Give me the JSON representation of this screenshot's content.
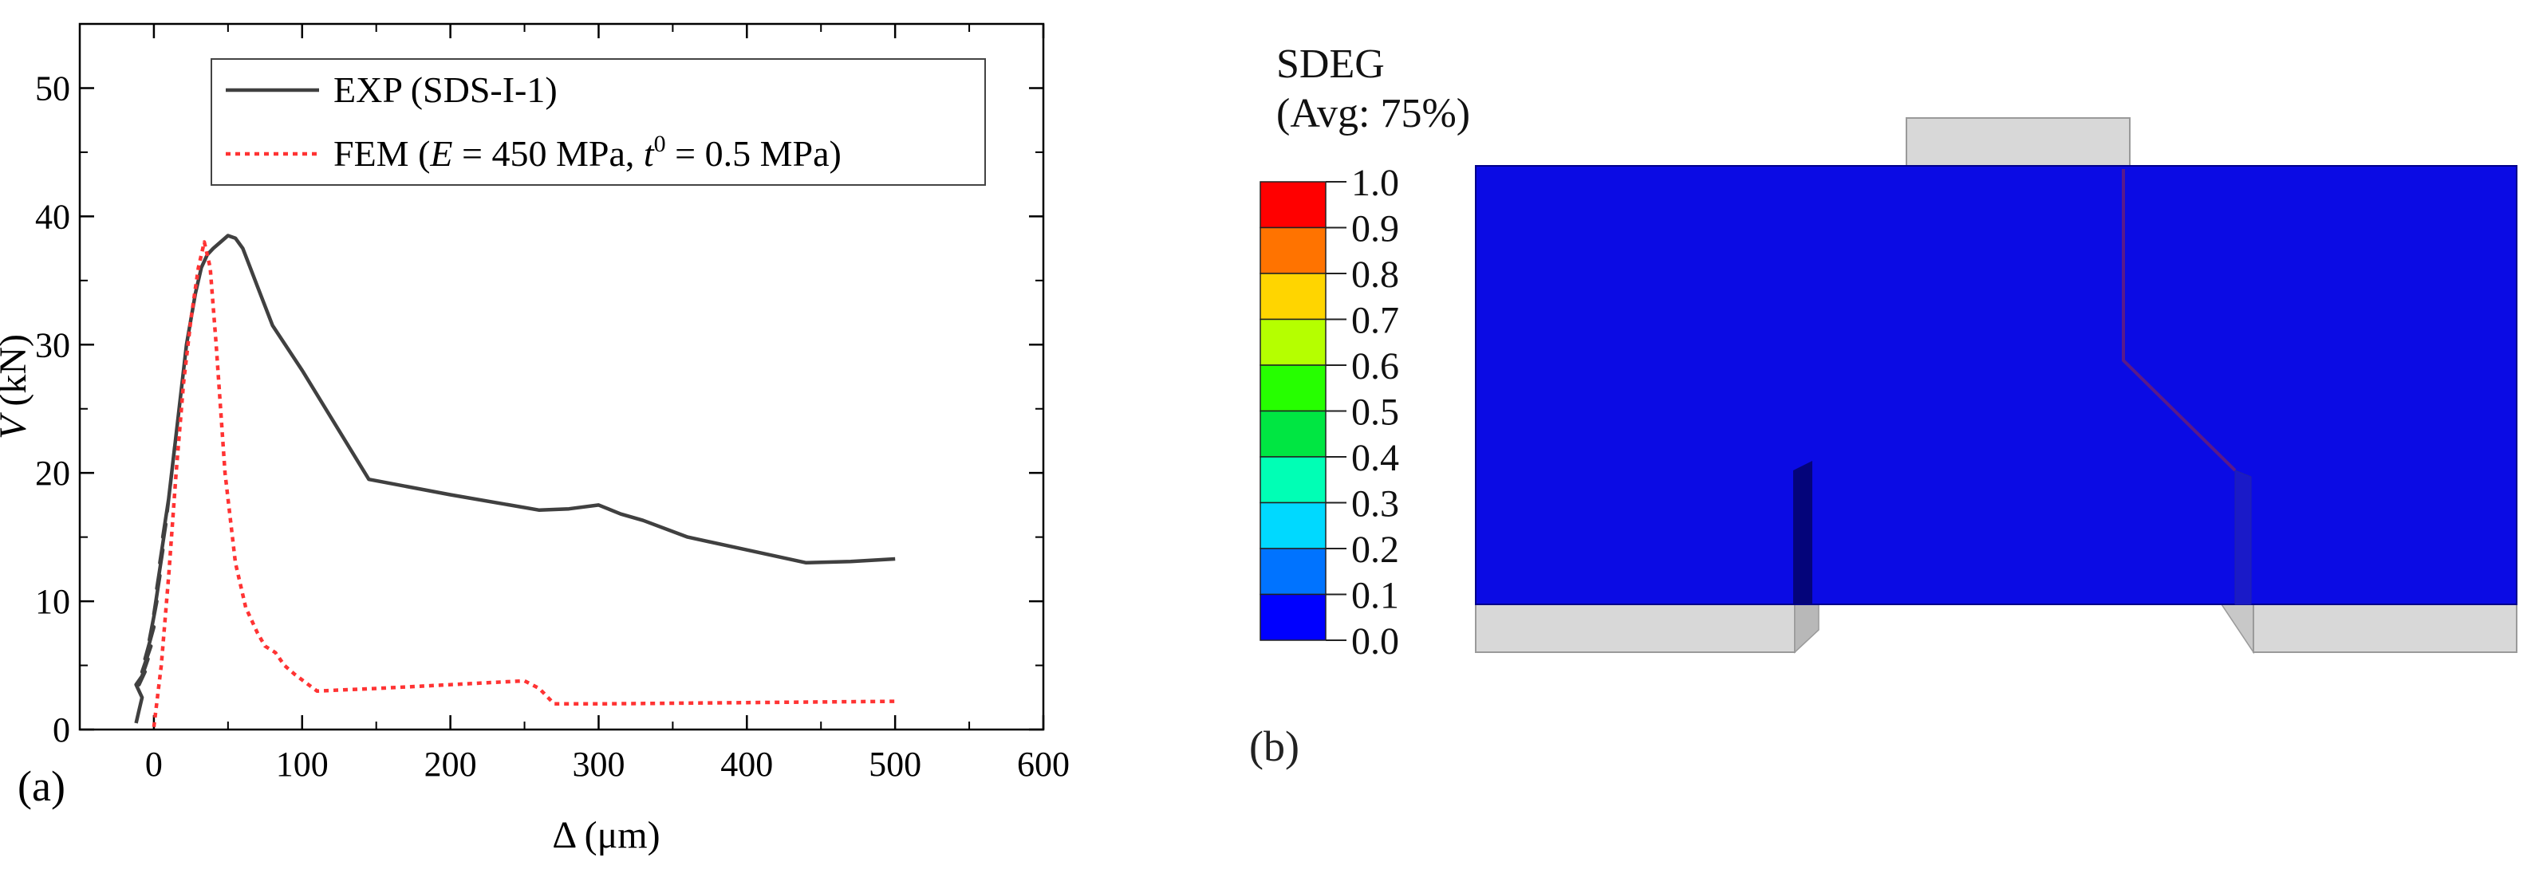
{
  "chart_data": {
    "type": "line",
    "xlabel": "Δ (μm)",
    "ylabel_symbol": "V",
    "ylabel_unit": "(kN)",
    "xlim": [
      -50,
      600
    ],
    "ylim": [
      0,
      55
    ],
    "xticks": [
      0,
      100,
      200,
      300,
      400,
      500,
      600
    ],
    "yticks": [
      0,
      10,
      20,
      30,
      40,
      50
    ],
    "grid": false,
    "legend_position": "top-right",
    "series": [
      {
        "name": "EXP (SDS-I-1)",
        "legend_text": "EXP (SDS-I-1)",
        "color": "#404040",
        "style": "solid",
        "x": [
          -12,
          -10,
          -8,
          -12,
          -6,
          -10,
          -4,
          -8,
          -2,
          -6,
          0,
          -3,
          2,
          0,
          4,
          2,
          6,
          4,
          8,
          6,
          10,
          9,
          12,
          11,
          14,
          13,
          16,
          18,
          20,
          22,
          25,
          28,
          32,
          36,
          40,
          45,
          50,
          55,
          60,
          65,
          70,
          80,
          100,
          145,
          200,
          260,
          280,
          300,
          315,
          330,
          360,
          400,
          440,
          470,
          500
        ],
        "y": [
          0.5,
          1.5,
          2.5,
          3.5,
          4.5,
          3.5,
          5.5,
          4.5,
          6.5,
          5.5,
          8,
          7,
          10,
          9,
          12,
          11,
          14,
          13,
          16,
          15,
          18,
          17,
          20,
          19,
          22,
          21,
          24,
          26,
          28,
          30,
          32,
          34,
          36,
          37,
          37.5,
          38,
          38.5,
          38.3,
          37.5,
          36,
          34.5,
          31.5,
          28,
          19.5,
          18.3,
          17.1,
          17.2,
          17.5,
          16.8,
          16.3,
          15,
          14,
          13,
          13.1,
          13.3
        ]
      },
      {
        "name": "FEM",
        "legend_text": "FEM (E = 450 MPa, t0 = 0.5 MPa)",
        "legend_prefix": "FEM (",
        "legend_e": "E",
        "legend_mid": " = 450 MPa, ",
        "legend_t": "t",
        "legend_t_sup": "0",
        "legend_suffix": " = 0.5 MPa)",
        "color": "#ff3333",
        "style": "dotted",
        "x": [
          0,
          5,
          10,
          15,
          20,
          25,
          30,
          34,
          38,
          42,
          48,
          55,
          62,
          70,
          75,
          82,
          88,
          95,
          110,
          150,
          200,
          250,
          260,
          270,
          300,
          400,
          500
        ],
        "y": [
          0.2,
          5,
          12,
          20,
          27,
          32,
          36,
          38,
          36,
          30,
          20,
          13,
          9.5,
          7.5,
          6.5,
          6,
          5,
          4.3,
          3,
          3.2,
          3.5,
          3.8,
          3.2,
          2,
          2,
          2.1,
          2.2
        ]
      }
    ]
  },
  "figure_b": {
    "panel_label": "(b)",
    "colorbar_title": "SDEG",
    "colorbar_subtitle": "(Avg: 75%)",
    "colorbar_ticks": [
      "1.0",
      "0.9",
      "0.8",
      "0.7",
      "0.6",
      "0.5",
      "0.4",
      "0.3",
      "0.2",
      "0.1",
      "0.0"
    ],
    "colorbar_colors": [
      "#ff0000",
      "#ff7300",
      "#ffd500",
      "#b5ff00",
      "#26ff00",
      "#00e642",
      "#00ffb5",
      "#00d9ff",
      "#0073ff",
      "#0000ff"
    ],
    "specimen_color": "#0b0be4",
    "support_color": "#d8d8d8"
  },
  "figure_a": {
    "panel_label": "(a)"
  }
}
